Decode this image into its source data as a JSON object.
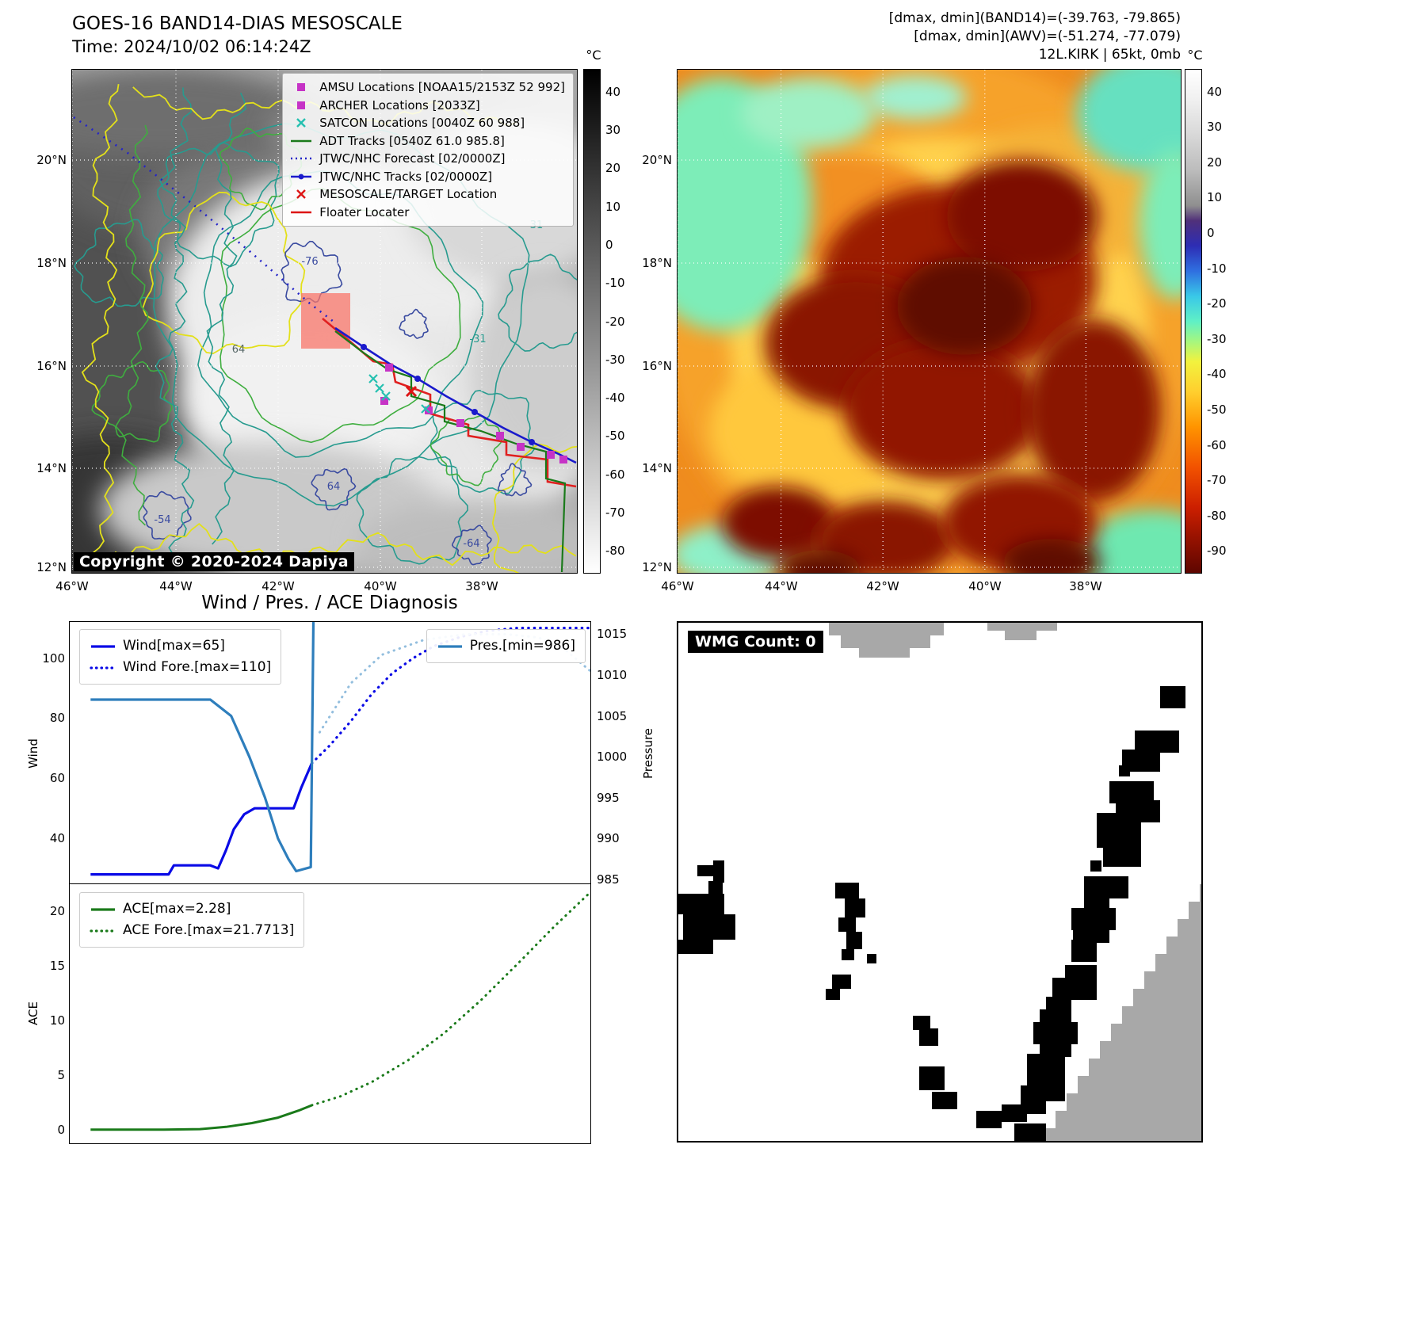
{
  "panel_band14": {
    "title_line1": "GOES-16 BAND14-DIAS MESOSCALE",
    "title_line2": "Time: 2024/10/02 06:14:24Z",
    "copyright": "Copyright © 2020-2024 Dapiya",
    "colorbar": {
      "unit": "°C",
      "ticks": [
        40,
        30,
        20,
        10,
        0,
        -10,
        -20,
        -30,
        -40,
        -50,
        -60,
        -70,
        -80
      ]
    },
    "lat_ticks": [
      "20°N",
      "18°N",
      "16°N",
      "14°N",
      "12°N"
    ],
    "lon_ticks": [
      "46°W",
      "44°W",
      "42°W",
      "40°W",
      "38°W"
    ],
    "legend": [
      {
        "marker": "square",
        "color": "#c633c6",
        "label": "AMSU Locations [NOAA15/2153Z 52 992]"
      },
      {
        "marker": "square",
        "color": "#c633c6",
        "label": "ARCHER Locations [2033Z]"
      },
      {
        "marker": "x",
        "color": "#25c0b0",
        "label": "SATCON Locations [0040Z 60 988]"
      },
      {
        "marker": "line",
        "color": "#1a7a1a",
        "label": "ADT Tracks [0540Z 61.0 985.8]"
      },
      {
        "marker": "dotted",
        "color": "#2424c8",
        "label": "JTWC/NHC Forecast [02/0000Z]"
      },
      {
        "marker": "line-dot",
        "color": "#1a1acc",
        "label": "JTWC/NHC Tracks [02/0000Z]"
      },
      {
        "marker": "x",
        "color": "#dd1515",
        "label": "MESOSCALE/TARGET Location"
      },
      {
        "marker": "line",
        "color": "#dd1515",
        "label": "Floater Locater"
      }
    ],
    "contour_labels": [
      "-76",
      "-31",
      "31",
      "64",
      "64",
      "-64",
      "-54"
    ]
  },
  "panel_awv": {
    "header_line1": "[dmax, dmin](BAND14)=(-39.763, -79.865)",
    "header_line2": "[dmax, dmin](AWV)=(-51.274, -77.079)",
    "header_line3": "12L.KIRK | 65kt, 0mb",
    "colorbar": {
      "unit": "°C",
      "ticks": [
        40,
        30,
        20,
        10,
        0,
        -10,
        -20,
        -30,
        -40,
        -50,
        -60,
        -70,
        -80,
        -90
      ]
    },
    "lat_ticks": [
      "20°N",
      "18°N",
      "16°N",
      "14°N",
      "12°N"
    ],
    "lon_ticks": [
      "46°W",
      "44°W",
      "42°W",
      "40°W",
      "38°W"
    ]
  },
  "wmg": {
    "label": "WMG Count: 0"
  },
  "chart_data": [
    {
      "type": "line",
      "title": "Wind / Pres. / ACE Diagnosis",
      "ylabel_left": "Wind",
      "ylabel_right": "Pressure",
      "x_ticks": [],
      "y_left": {
        "range": [
          25,
          112
        ],
        "ticks": [
          40,
          60,
          80,
          100
        ]
      },
      "y_right": {
        "range": [
          984.5,
          1016.5
        ],
        "ticks": [
          985,
          990,
          995,
          1000,
          1005,
          1010,
          1015
        ]
      },
      "legend_left": [
        {
          "label": "Wind[max=65]",
          "style": "solid",
          "color": "#0a0ae6"
        },
        {
          "label": "Wind Fore.[max=110]",
          "style": "dotted",
          "color": "#0a0ae6"
        }
      ],
      "legend_right": [
        {
          "label": "Pres.[min=986]",
          "style": "solid",
          "color": "#2e7ebc"
        }
      ],
      "series": [
        {
          "name": "Wind",
          "axis": "left",
          "style": "solid",
          "color": "#0a0ae6",
          "width": 3.2,
          "x": [
            0.04,
            0.19,
            0.2,
            0.27,
            0.285,
            0.3,
            0.315,
            0.335,
            0.355,
            0.43,
            0.445,
            0.465
          ],
          "y": [
            28,
            28,
            31,
            31,
            30,
            36,
            43,
            48,
            50,
            50,
            57,
            65
          ]
        },
        {
          "name": "Wind Fore.",
          "axis": "left",
          "style": "dotted",
          "color": "#0a0ae6",
          "width": 3.2,
          "x": [
            0.465,
            0.5,
            0.54,
            0.58,
            0.62,
            0.66,
            0.7,
            0.75,
            0.8,
            0.86,
            0.93,
            1.0
          ],
          "y": [
            65,
            71,
            79,
            88,
            95,
            100,
            104,
            107,
            109,
            110,
            110,
            110
          ]
        },
        {
          "name": "Pres.",
          "axis": "right",
          "style": "solid",
          "color": "#2e7ebc",
          "width": 3.2,
          "x": [
            0.04,
            0.27,
            0.31,
            0.345,
            0.375,
            0.4,
            0.42,
            0.435,
            0.463,
            0.468
          ],
          "y": [
            1007,
            1007,
            1005,
            1000,
            995,
            990,
            987.5,
            986,
            986.5,
            1016.5
          ]
        },
        {
          "name": "Pres. Fore.",
          "axis": "right",
          "style": "dotted",
          "color": "#93bede",
          "width": 3,
          "x": [
            0.48,
            0.54,
            0.6,
            0.68,
            0.76,
            0.84,
            0.9,
            0.95,
            1.0
          ],
          "y": [
            1003,
            1009,
            1012.5,
            1014.3,
            1015,
            1015,
            1014.6,
            1013.2,
            1010.5
          ]
        }
      ]
    },
    {
      "type": "line",
      "title": "",
      "ylabel_left": "ACE",
      "x_ticks": [],
      "y_left": {
        "range": [
          -1.2,
          22.5
        ],
        "ticks": [
          0,
          5,
          10,
          15,
          20
        ]
      },
      "legend_left": [
        {
          "label": "ACE[max=2.28]",
          "style": "solid",
          "color": "#1a7a1a"
        },
        {
          "label": "ACE Fore.[max=21.7713]",
          "style": "dotted",
          "color": "#1a7a1a"
        }
      ],
      "series": [
        {
          "name": "ACE",
          "axis": "left",
          "style": "solid",
          "color": "#1a7a1a",
          "width": 3,
          "x": [
            0.04,
            0.18,
            0.25,
            0.3,
            0.35,
            0.4,
            0.44,
            0.465
          ],
          "y": [
            0.05,
            0.05,
            0.1,
            0.3,
            0.65,
            1.15,
            1.8,
            2.28
          ]
        },
        {
          "name": "ACE Fore.",
          "axis": "left",
          "style": "dotted",
          "color": "#1a7a1a",
          "width": 3,
          "x": [
            0.465,
            0.52,
            0.58,
            0.65,
            0.72,
            0.79,
            0.86,
            0.93,
            1.0
          ],
          "y": [
            2.28,
            3.1,
            4.4,
            6.4,
            8.9,
            11.9,
            15.2,
            18.6,
            21.77
          ]
        }
      ]
    }
  ]
}
